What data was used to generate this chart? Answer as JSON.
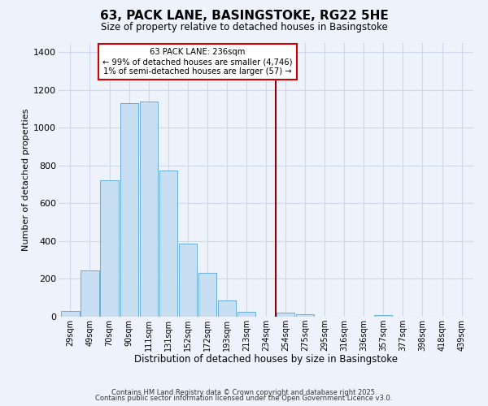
{
  "title": "63, PACK LANE, BASINGSTOKE, RG22 5HE",
  "subtitle": "Size of property relative to detached houses in Basingstoke",
  "xlabel": "Distribution of detached houses by size in Basingstoke",
  "ylabel": "Number of detached properties",
  "bar_labels": [
    "29sqm",
    "49sqm",
    "70sqm",
    "90sqm",
    "111sqm",
    "131sqm",
    "152sqm",
    "172sqm",
    "193sqm",
    "213sqm",
    "234sqm",
    "254sqm",
    "275sqm",
    "295sqm",
    "316sqm",
    "336sqm",
    "357sqm",
    "377sqm",
    "398sqm",
    "418sqm",
    "439sqm"
  ],
  "bar_values": [
    30,
    247,
    720,
    1128,
    1140,
    775,
    385,
    232,
    85,
    27,
    0,
    20,
    14,
    0,
    0,
    0,
    8,
    0,
    0,
    0,
    0
  ],
  "bar_color": "#c8dff3",
  "bar_edge_color": "#6aadd5",
  "vline_x_idx": 10,
  "vline_color": "#8b0000",
  "annotation_title": "63 PACK LANE: 236sqm",
  "annotation_line1": "← 99% of detached houses are smaller (4,746)",
  "annotation_line2": "1% of semi-detached houses are larger (57) →",
  "annotation_box_color": "white",
  "annotation_box_edge": "#cc0000",
  "ylim": [
    0,
    1450
  ],
  "yticks": [
    0,
    200,
    400,
    600,
    800,
    1000,
    1200,
    1400
  ],
  "background_color": "#eef2fa",
  "grid_color": "#d0d8ee",
  "footer1": "Contains HM Land Registry data © Crown copyright and database right 2025.",
  "footer2": "Contains public sector information licensed under the Open Government Licence v3.0."
}
